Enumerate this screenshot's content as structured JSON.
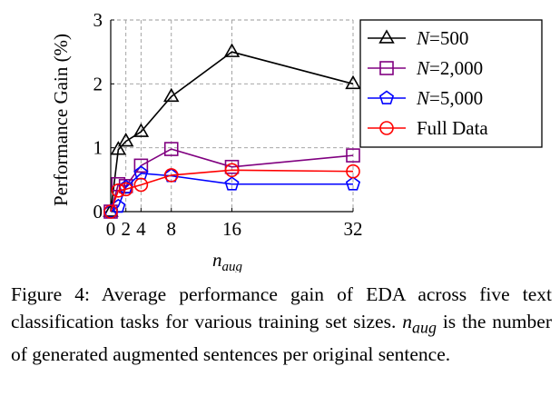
{
  "chart_data": {
    "type": "line",
    "title": "",
    "xlabel_base": "n",
    "xlabel_sub": "aug",
    "ylabel": "Performance Gain (%)",
    "x": [
      0,
      1,
      2,
      4,
      8,
      16,
      32
    ],
    "xticks": [
      0,
      2,
      4,
      8,
      16,
      32
    ],
    "yticks": [
      0,
      1,
      2,
      3
    ],
    "xlim": [
      0,
      32
    ],
    "ylim": [
      0,
      3
    ],
    "grid": "dashed vertical and horizontal",
    "legend_position": "top-right, outside plot area",
    "series": [
      {
        "name": "N=500",
        "legend_var": "N",
        "legend_val": "=500",
        "marker": "triangle",
        "color": "#000000",
        "values": [
          0,
          0.97,
          1.1,
          1.25,
          1.8,
          2.5,
          2.0
        ]
      },
      {
        "name": "N=2,000",
        "legend_var": "N",
        "legend_val": "=2,000",
        "marker": "square",
        "color": "#800080",
        "values": [
          0,
          0.43,
          0.4,
          0.72,
          0.98,
          0.7,
          0.88
        ]
      },
      {
        "name": "N=5,000",
        "legend_var": "N",
        "legend_val": "=5,000",
        "marker": "pentagon",
        "color": "#0000ff",
        "values": [
          0,
          0.08,
          0.38,
          0.6,
          0.56,
          0.43,
          0.43
        ]
      },
      {
        "name": "Full Data",
        "legend_var": "",
        "legend_val": "Full Data",
        "marker": "circle",
        "color": "#ff0000",
        "values": [
          0,
          0.33,
          0.35,
          0.42,
          0.57,
          0.65,
          0.63
        ]
      }
    ]
  },
  "caption": {
    "line1": "Figure 4: Average performance gain of EDA across five",
    "line2": "text classification tasks for various training set sizes.",
    "line3_var": "n",
    "line3_sub": "aug",
    "line3_rest": " is the number of generated augmented sentences",
    "line4": "per original sentence."
  }
}
